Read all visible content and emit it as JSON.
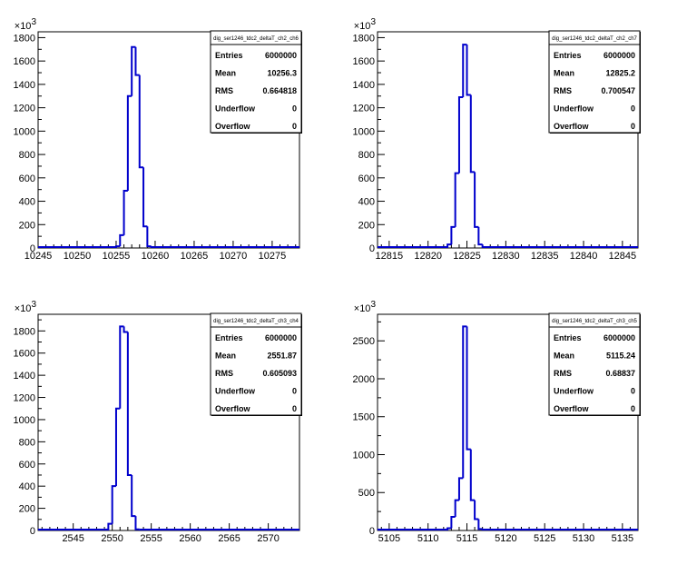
{
  "chart_data": [
    {
      "type": "bar",
      "title": "",
      "xlabel": "",
      "ylabel": "",
      "y_multiplier_label": "×10",
      "y_multiplier_exp": "3",
      "xlim": [
        10245,
        10278.5
      ],
      "ylim": [
        0,
        1850
      ],
      "x_ticks": [
        10245,
        10250,
        10255,
        10260,
        10265,
        10270,
        10275
      ],
      "y_ticks": [
        0,
        200,
        400,
        600,
        800,
        1000,
        1200,
        1400,
        1600,
        1800
      ],
      "bin_width": 0.5,
      "bins": [
        [
          10255.0,
          15
        ],
        [
          10255.5,
          110
        ],
        [
          10256.0,
          490
        ],
        [
          10256.5,
          1300
        ],
        [
          10257.0,
          1720
        ],
        [
          10257.5,
          1480
        ],
        [
          10258.0,
          690
        ],
        [
          10258.5,
          185
        ],
        [
          10259.0,
          15
        ]
      ],
      "stats": {
        "name": "dig_ser1246_tdc2_deltaT_ch2_ch6",
        "rows": [
          {
            "label": "Entries",
            "value": "6000000"
          },
          {
            "label": "Mean",
            "value": "10256.3"
          },
          {
            "label": "RMS",
            "value": "0.664818"
          },
          {
            "label": "Underflow",
            "value": "0"
          },
          {
            "label": "Overflow",
            "value": "0"
          }
        ]
      }
    },
    {
      "type": "bar",
      "title": "",
      "xlabel": "",
      "ylabel": "",
      "y_multiplier_label": "×10",
      "y_multiplier_exp": "3",
      "xlim": [
        12813.5,
        12847
      ],
      "ylim": [
        0,
        1850
      ],
      "x_ticks": [
        12815,
        12820,
        12825,
        12830,
        12835,
        12840,
        12845
      ],
      "y_ticks": [
        0,
        200,
        400,
        600,
        800,
        1000,
        1200,
        1400,
        1600,
        1800
      ],
      "bin_width": 0.5,
      "bins": [
        [
          12822.5,
          30
        ],
        [
          12823.0,
          180
        ],
        [
          12823.5,
          640
        ],
        [
          12824.0,
          1290
        ],
        [
          12824.5,
          1740
        ],
        [
          12825.0,
          1310
        ],
        [
          12825.5,
          650
        ],
        [
          12826.0,
          180
        ],
        [
          12826.5,
          30
        ]
      ],
      "stats": {
        "name": "dig_ser1246_tdc2_deltaT_ch2_ch7",
        "rows": [
          {
            "label": "Entries",
            "value": "6000000"
          },
          {
            "label": "Mean",
            "value": "12825.2"
          },
          {
            "label": "RMS",
            "value": "0.700547"
          },
          {
            "label": "Underflow",
            "value": "0"
          },
          {
            "label": "Overflow",
            "value": "0"
          }
        ]
      }
    },
    {
      "type": "bar",
      "title": "",
      "xlabel": "",
      "ylabel": "",
      "y_multiplier_label": "×10",
      "y_multiplier_exp": "3",
      "xlim": [
        2540.5,
        2574
      ],
      "ylim": [
        0,
        1950
      ],
      "x_ticks": [
        2545,
        2550,
        2555,
        2560,
        2565,
        2570
      ],
      "y_ticks": [
        0,
        200,
        400,
        600,
        800,
        1000,
        1200,
        1400,
        1600,
        1800
      ],
      "bin_width": 0.5,
      "bins": [
        [
          2549.5,
          60
        ],
        [
          2550.0,
          400
        ],
        [
          2550.5,
          1100
        ],
        [
          2551.0,
          1840
        ],
        [
          2551.5,
          1790
        ],
        [
          2552.0,
          500
        ],
        [
          2552.5,
          130
        ],
        [
          2553.0,
          10
        ]
      ],
      "stats": {
        "name": "dig_ser1246_tdc2_deltaT_ch3_ch4",
        "rows": [
          {
            "label": "Entries",
            "value": "6000000"
          },
          {
            "label": "Mean",
            "value": "2551.87"
          },
          {
            "label": "RMS",
            "value": "0.605093"
          },
          {
            "label": "Underflow",
            "value": "0"
          },
          {
            "label": "Overflow",
            "value": "0"
          }
        ]
      }
    },
    {
      "type": "bar",
      "title": "",
      "xlabel": "",
      "ylabel": "",
      "y_multiplier_label": "×10",
      "y_multiplier_exp": "3",
      "xlim": [
        5103.5,
        5137
      ],
      "ylim": [
        0,
        2850
      ],
      "x_ticks": [
        5105,
        5110,
        5115,
        5120,
        5125,
        5130,
        5135
      ],
      "y_ticks": [
        0,
        500,
        1000,
        1500,
        2000,
        2500
      ],
      "bin_width": 0.5,
      "bins": [
        [
          5112.5,
          30
        ],
        [
          5113.0,
          180
        ],
        [
          5113.5,
          400
        ],
        [
          5114.0,
          690
        ],
        [
          5114.5,
          2690
        ],
        [
          5115.0,
          1070
        ],
        [
          5115.5,
          400
        ],
        [
          5116.0,
          150
        ],
        [
          5116.5,
          20
        ]
      ],
      "stats": {
        "name": "dig_ser1246_tdc2_deltaT_ch3_ch5",
        "rows": [
          {
            "label": "Entries",
            "value": "6000000"
          },
          {
            "label": "Mean",
            "value": "5115.24"
          },
          {
            "label": "RMS",
            "value": "0.68837"
          },
          {
            "label": "Underflow",
            "value": "0"
          },
          {
            "label": "Overflow",
            "value": "0"
          }
        ]
      }
    }
  ]
}
